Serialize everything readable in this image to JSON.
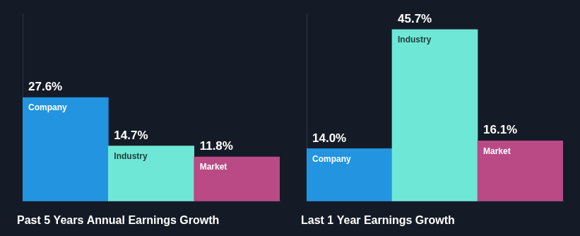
{
  "chart_data": [
    {
      "type": "bar",
      "title": "Past 5 Years Annual Earnings Growth",
      "categories": [
        "Company",
        "Industry",
        "Market"
      ],
      "values": [
        27.6,
        14.7,
        11.8
      ],
      "value_labels": [
        "27.6%",
        "14.7%",
        "11.8%"
      ],
      "colors": [
        "#2394df",
        "#6fe7d6",
        "#b94a86"
      ],
      "ylim": [
        0,
        50
      ],
      "grid": false,
      "data_labels": true,
      "tick_labels": false
    },
    {
      "type": "bar",
      "title": "Last 1 Year Earnings Growth",
      "categories": [
        "Company",
        "Industry",
        "Market"
      ],
      "values": [
        14.0,
        45.7,
        16.1
      ],
      "value_labels": [
        "14.0%",
        "45.7%",
        "16.1%"
      ],
      "colors": [
        "#2394df",
        "#6fe7d6",
        "#b94a86"
      ],
      "ylim": [
        0,
        50
      ],
      "grid": false,
      "data_labels": true,
      "tick_labels": false
    }
  ]
}
